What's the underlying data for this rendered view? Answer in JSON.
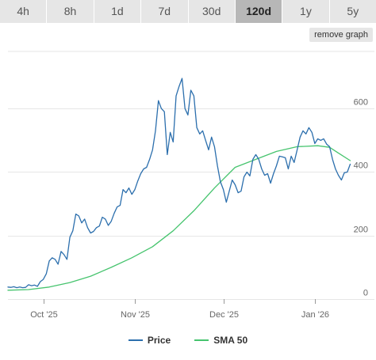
{
  "timeframes": {
    "tabs": [
      "4h",
      "8h",
      "1d",
      "7d",
      "30d",
      "120d",
      "1y",
      "5y"
    ],
    "active": "120d"
  },
  "remove_graph_label": "remove graph",
  "colors": {
    "price": "#2c6fad",
    "sma": "#46c46e",
    "grid": "#e6e6e6",
    "tick": "#666666"
  },
  "chart_data": {
    "type": "line",
    "x_start": "2025-09-19",
    "x_ticks": [
      {
        "date": "2025-10-01",
        "label": "Oct '25"
      },
      {
        "date": "2025-11-01",
        "label": "Nov '25"
      },
      {
        "date": "2025-12-01",
        "label": "Dec '25"
      },
      {
        "date": "2026-01-01",
        "label": "Jan '26"
      }
    ],
    "y_ticks": [
      0,
      200,
      400,
      600
    ],
    "ylim": [
      0,
      780
    ],
    "grid": "horizontal",
    "legend_position": "bottom-center",
    "series": [
      {
        "name": "Price",
        "points": [
          [
            "2025-09-19",
            38
          ],
          [
            "2025-09-20",
            37
          ],
          [
            "2025-09-21",
            39
          ],
          [
            "2025-09-22",
            36
          ],
          [
            "2025-09-23",
            38
          ],
          [
            "2025-09-24",
            36
          ],
          [
            "2025-09-25",
            37
          ],
          [
            "2025-09-26",
            45
          ],
          [
            "2025-09-27",
            42
          ],
          [
            "2025-09-28",
            44
          ],
          [
            "2025-09-29",
            40
          ],
          [
            "2025-09-30",
            55
          ],
          [
            "2025-10-01",
            62
          ],
          [
            "2025-10-02",
            80
          ],
          [
            "2025-10-03",
            120
          ],
          [
            "2025-10-04",
            130
          ],
          [
            "2025-10-05",
            125
          ],
          [
            "2025-10-06",
            110
          ],
          [
            "2025-10-07",
            150
          ],
          [
            "2025-10-08",
            140
          ],
          [
            "2025-10-09",
            125
          ],
          [
            "2025-10-10",
            195
          ],
          [
            "2025-10-11",
            215
          ],
          [
            "2025-10-12",
            268
          ],
          [
            "2025-10-13",
            262
          ],
          [
            "2025-10-14",
            240
          ],
          [
            "2025-10-15",
            252
          ],
          [
            "2025-10-16",
            225
          ],
          [
            "2025-10-17",
            208
          ],
          [
            "2025-10-18",
            213
          ],
          [
            "2025-10-19",
            225
          ],
          [
            "2025-10-20",
            230
          ],
          [
            "2025-10-21",
            258
          ],
          [
            "2025-10-22",
            252
          ],
          [
            "2025-10-23",
            232
          ],
          [
            "2025-10-24",
            245
          ],
          [
            "2025-10-25",
            270
          ],
          [
            "2025-10-26",
            290
          ],
          [
            "2025-10-27",
            295
          ],
          [
            "2025-10-28",
            345
          ],
          [
            "2025-10-29",
            335
          ],
          [
            "2025-10-30",
            350
          ],
          [
            "2025-10-31",
            330
          ],
          [
            "2025-11-01",
            345
          ],
          [
            "2025-11-02",
            372
          ],
          [
            "2025-11-03",
            395
          ],
          [
            "2025-11-04",
            410
          ],
          [
            "2025-11-05",
            415
          ],
          [
            "2025-11-06",
            440
          ],
          [
            "2025-11-07",
            470
          ],
          [
            "2025-11-08",
            530
          ],
          [
            "2025-11-09",
            625
          ],
          [
            "2025-11-10",
            600
          ],
          [
            "2025-11-11",
            590
          ],
          [
            "2025-11-12",
            455
          ],
          [
            "2025-11-13",
            525
          ],
          [
            "2025-11-14",
            495
          ],
          [
            "2025-11-15",
            640
          ],
          [
            "2025-11-16",
            670
          ],
          [
            "2025-11-17",
            695
          ],
          [
            "2025-11-18",
            600
          ],
          [
            "2025-11-19",
            580
          ],
          [
            "2025-11-20",
            658
          ],
          [
            "2025-11-21",
            640
          ],
          [
            "2025-11-22",
            540
          ],
          [
            "2025-11-23",
            520
          ],
          [
            "2025-11-24",
            530
          ],
          [
            "2025-11-25",
            500
          ],
          [
            "2025-11-26",
            470
          ],
          [
            "2025-11-27",
            510
          ],
          [
            "2025-11-28",
            480
          ],
          [
            "2025-11-29",
            420
          ],
          [
            "2025-11-30",
            370
          ],
          [
            "2025-12-01",
            345
          ],
          [
            "2025-12-02",
            305
          ],
          [
            "2025-12-03",
            340
          ],
          [
            "2025-12-04",
            375
          ],
          [
            "2025-12-05",
            360
          ],
          [
            "2025-12-06",
            335
          ],
          [
            "2025-12-07",
            340
          ],
          [
            "2025-12-08",
            385
          ],
          [
            "2025-12-09",
            400
          ],
          [
            "2025-12-10",
            388
          ],
          [
            "2025-12-11",
            440
          ],
          [
            "2025-12-12",
            455
          ],
          [
            "2025-12-13",
            440
          ],
          [
            "2025-12-14",
            410
          ],
          [
            "2025-12-15",
            390
          ],
          [
            "2025-12-16",
            395
          ],
          [
            "2025-12-17",
            365
          ],
          [
            "2025-12-18",
            395
          ],
          [
            "2025-12-19",
            420
          ],
          [
            "2025-12-20",
            450
          ],
          [
            "2025-12-21",
            448
          ],
          [
            "2025-12-22",
            445
          ],
          [
            "2025-12-23",
            410
          ],
          [
            "2025-12-24",
            450
          ],
          [
            "2025-12-25",
            430
          ],
          [
            "2025-12-26",
            470
          ],
          [
            "2025-12-27",
            510
          ],
          [
            "2025-12-28",
            530
          ],
          [
            "2025-12-29",
            520
          ],
          [
            "2025-12-30",
            540
          ],
          [
            "2025-12-31",
            525
          ],
          [
            "2026-01-01",
            490
          ],
          [
            "2026-01-02",
            505
          ],
          [
            "2026-01-03",
            500
          ],
          [
            "2026-01-04",
            505
          ],
          [
            "2026-01-05",
            488
          ],
          [
            "2026-01-06",
            480
          ],
          [
            "2026-01-07",
            440
          ],
          [
            "2026-01-08",
            410
          ],
          [
            "2026-01-09",
            390
          ],
          [
            "2026-01-10",
            375
          ],
          [
            "2026-01-11",
            398
          ],
          [
            "2026-01-12",
            400
          ],
          [
            "2026-01-13",
            425
          ]
        ]
      },
      {
        "name": "SMA 50",
        "points": [
          [
            "2025-09-19",
            28
          ],
          [
            "2025-09-26",
            30
          ],
          [
            "2025-10-03",
            38
          ],
          [
            "2025-10-10",
            52
          ],
          [
            "2025-10-17",
            72
          ],
          [
            "2025-10-24",
            100
          ],
          [
            "2025-10-31",
            130
          ],
          [
            "2025-11-07",
            165
          ],
          [
            "2025-11-14",
            215
          ],
          [
            "2025-11-21",
            278
          ],
          [
            "2025-11-28",
            350
          ],
          [
            "2025-12-05",
            415
          ],
          [
            "2025-12-12",
            440
          ],
          [
            "2025-12-19",
            465
          ],
          [
            "2025-12-26",
            480
          ],
          [
            "2026-01-02",
            483
          ],
          [
            "2026-01-06",
            478
          ],
          [
            "2026-01-09",
            460
          ],
          [
            "2026-01-13",
            436
          ]
        ]
      }
    ]
  }
}
